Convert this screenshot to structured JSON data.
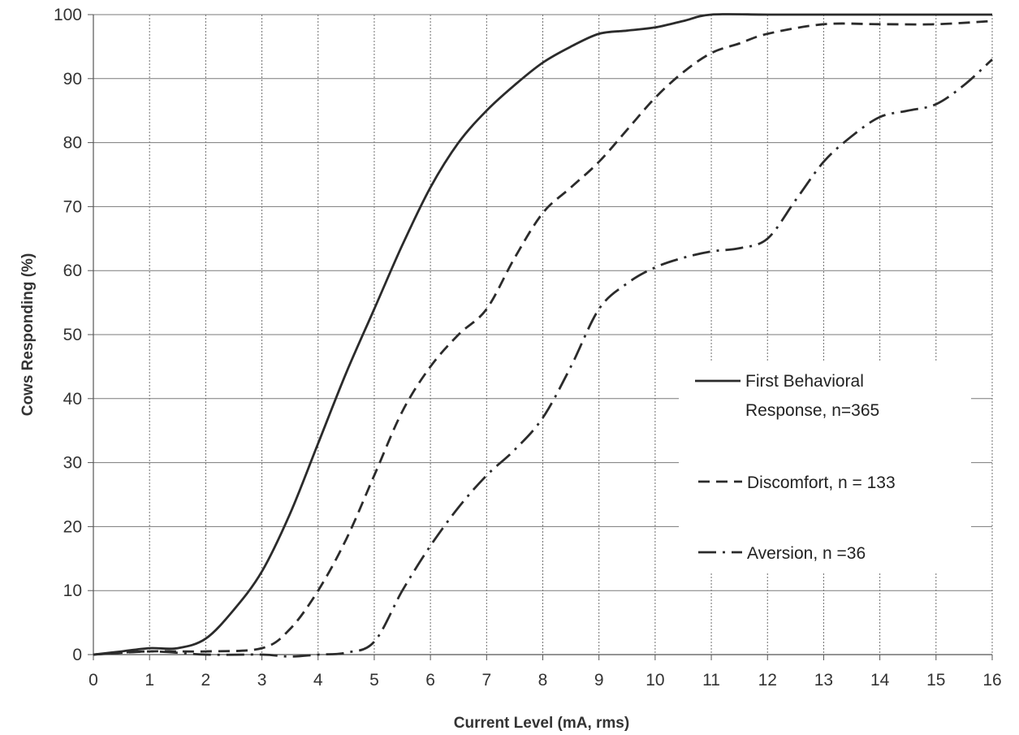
{
  "chart_data": {
    "type": "line",
    "title": "",
    "xlabel": "Current Level (mA, rms)",
    "ylabel": "Cows Responding (%)",
    "xlim": [
      0,
      16
    ],
    "ylim": [
      0,
      100
    ],
    "xticks": [
      "0",
      "1",
      "2",
      "3",
      "4",
      "5",
      "6",
      "7",
      "8",
      "9",
      "10",
      "11",
      "12",
      "13",
      "14",
      "15",
      "16"
    ],
    "yticks": [
      "0",
      "10",
      "20",
      "30",
      "40",
      "50",
      "60",
      "70",
      "80",
      "90",
      "100"
    ],
    "grid": true,
    "legend_position": "right, middle",
    "series": [
      {
        "name": "First Behavioral Response, n=365",
        "legend_lines": [
          "First Behavioral",
          "Response, n=365"
        ],
        "style": "solid",
        "x": [
          0,
          0.5,
          1,
          1.5,
          2,
          2.5,
          3,
          3.5,
          4,
          4.5,
          5,
          5.5,
          6,
          6.5,
          7,
          7.5,
          8,
          8.5,
          9,
          9.5,
          10,
          10.5,
          11,
          12,
          13,
          14,
          15,
          16
        ],
        "y": [
          0,
          0.5,
          1,
          1,
          2.5,
          7,
          13,
          22,
          33,
          44,
          54,
          64,
          73,
          80,
          85,
          89,
          92.5,
          95,
          97,
          97.5,
          98,
          99,
          100,
          100,
          100,
          100,
          100,
          100
        ]
      },
      {
        "name": "Discomfort, n = 133",
        "legend_lines": [
          "Discomfort, n = 133"
        ],
        "style": "dashed",
        "x": [
          0,
          1,
          2,
          3,
          3.5,
          4,
          4.5,
          5,
          5.5,
          6,
          6.5,
          7,
          7.5,
          8,
          8.5,
          9,
          9.5,
          10,
          10.5,
          11,
          11.5,
          12,
          13,
          14,
          15,
          16
        ],
        "y": [
          0,
          0.5,
          0.5,
          1,
          4,
          10,
          18,
          28,
          38,
          45,
          50,
          54,
          62,
          69,
          73,
          77,
          82,
          87,
          91,
          94,
          95.5,
          97,
          98.5,
          98.5,
          98.5,
          99
        ]
      },
      {
        "name": "Aversion, n =36",
        "legend_lines": [
          "Aversion, n =36"
        ],
        "style": "dashdot",
        "x": [
          0,
          1,
          2,
          3,
          3.5,
          4,
          4.5,
          5,
          5.5,
          6,
          6.5,
          7,
          7.5,
          8,
          8.5,
          9,
          9.5,
          10,
          10.5,
          11,
          11.5,
          12,
          12.5,
          13,
          13.5,
          14,
          14.5,
          15,
          15.5,
          16
        ],
        "y": [
          0,
          0.5,
          0,
          0,
          -0.3,
          0,
          0.3,
          2,
          10,
          17,
          23,
          28,
          32,
          37,
          45,
          54,
          58,
          60.5,
          62,
          63,
          63.5,
          65,
          71,
          77,
          81,
          84,
          85,
          86,
          89,
          93
        ]
      }
    ]
  }
}
